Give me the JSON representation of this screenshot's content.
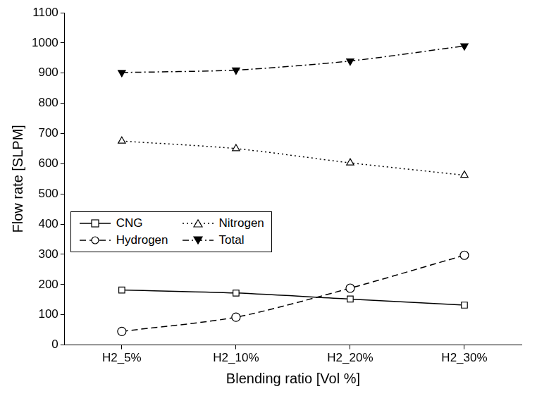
{
  "chart_data": {
    "type": "line",
    "x_label": "Blending ratio [Vol %]",
    "y_label": "Flow rate [SLPM]",
    "categories": [
      "H2_5%",
      "H2_10%",
      "H2_20%",
      "H2_30%"
    ],
    "series": [
      {
        "name": "CNG",
        "color": "#000000",
        "marker": "open_square",
        "line_style": "solid",
        "values": [
          182,
          172,
          152,
          132
        ]
      },
      {
        "name": "Nitrogen",
        "color": "#000000",
        "marker": "open_triangle",
        "line_style": "dotted",
        "values": [
          675,
          650,
          603,
          562
        ]
      },
      {
        "name": "Hydrogen",
        "color": "#000000",
        "marker": "open_circle",
        "line_style": "dashed",
        "values": [
          45,
          92,
          188,
          297
        ]
      },
      {
        "name": "Total",
        "color": "#000000",
        "marker": "filled_triangle_down",
        "line_style": "dashdot",
        "values": [
          902,
          910,
          940,
          990
        ]
      }
    ],
    "ylim": [
      0,
      1100
    ],
    "yticks": [
      0,
      100,
      200,
      300,
      400,
      500,
      600,
      700,
      800,
      900,
      1000,
      1100
    ],
    "grid": false,
    "legend": "left"
  }
}
